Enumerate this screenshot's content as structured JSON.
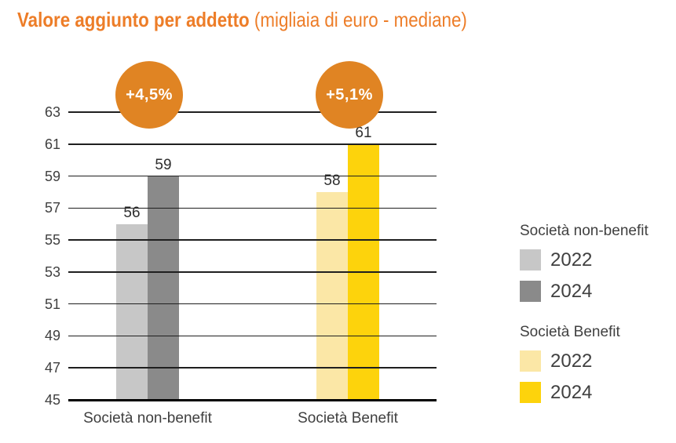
{
  "title": {
    "main": "Valore aggiunto per addetto",
    "sub": " (migliaia di euro - mediane)"
  },
  "chart_data": {
    "type": "bar",
    "title": "Valore aggiunto per addetto (migliaia di euro - mediane)",
    "categories": [
      "Società non-benefit",
      "Società Benefit"
    ],
    "series": [
      {
        "name": "2022",
        "values": [
          56,
          58
        ]
      },
      {
        "name": "2024",
        "values": [
          59,
          61
        ]
      }
    ],
    "annotations": [
      "+4,5%",
      "+5,1%"
    ],
    "ylim": [
      45,
      63
    ],
    "yticks": [
      63,
      61,
      59,
      57,
      55,
      53,
      51,
      49,
      47,
      45
    ],
    "grid": true,
    "legend_position": "right",
    "bar_value_labels": [
      [
        "56",
        "58"
      ],
      [
        "59",
        "61"
      ]
    ]
  },
  "legend": {
    "groups": [
      {
        "title": "Società non-benefit",
        "items": [
          {
            "label": "2022",
            "color": "#C7C7C7"
          },
          {
            "label": "2024",
            "color": "#8A8A8A"
          }
        ]
      },
      {
        "title": "Società Benefit",
        "items": [
          {
            "label": "2022",
            "color": "#FBE7A6"
          },
          {
            "label": "2024",
            "color": "#FDD30C"
          }
        ]
      }
    ]
  },
  "colors": {
    "background": "#FFFFFF",
    "title": "#ED7D28",
    "badge": "#E08423",
    "badge_text": "#FFFFFF",
    "grid": "#1F1F1F",
    "baseline": "#000000",
    "tick_text": "#3F3F3F",
    "category_text": "#3F3F3F",
    "value_text": "#2E2E2E",
    "legend_text": "#404040",
    "bar_colors": [
      [
        "#C7C7C7",
        "#8A8A8A"
      ],
      [
        "#FBE7A6",
        "#FDD30C"
      ]
    ]
  }
}
